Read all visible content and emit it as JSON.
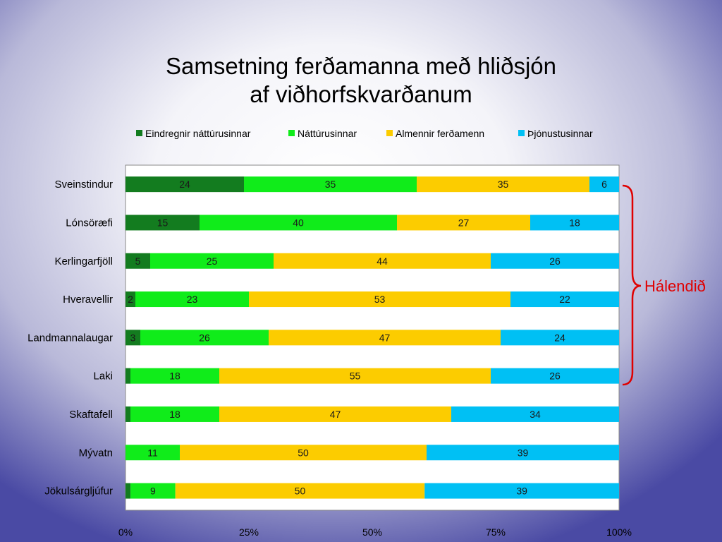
{
  "title_line1": "Samsetning ferðamanna með hliðsjón",
  "title_line2": "af  viðhorfskvarðanum",
  "bracket_label": "Hálendið",
  "bracket_color": "#e00000",
  "chart_data": {
    "type": "bar",
    "orientation": "horizontal",
    "stacked": "percent",
    "title": "Samsetning ferðamanna með hliðsjón af viðhorfskvarðanum",
    "categories": [
      "Sveinstindur",
      "Lónsöræfi",
      "Kerlingarfjöll",
      "Hveravellir",
      "Landmannalaugar",
      "Laki",
      "Skaftafell",
      "Mývatn",
      "Jökulsárgljúfur"
    ],
    "series": [
      {
        "name": "Eindregnir náttúrusinnar",
        "color": "#137c1f",
        "values": [
          24,
          15,
          5,
          2,
          3,
          1,
          1,
          0,
          1
        ],
        "labels": [
          "24",
          "15",
          "5",
          "2",
          "3",
          "",
          "",
          "",
          ""
        ]
      },
      {
        "name": "Náttúrusinnar",
        "color": "#10ec1a",
        "values": [
          35,
          40,
          25,
          23,
          26,
          18,
          18,
          11,
          9
        ],
        "labels": [
          "35",
          "40",
          "25",
          "23",
          "26",
          "18",
          "18",
          "11",
          "9"
        ]
      },
      {
        "name": "Almennir ferðamenn",
        "color": "#fccc00",
        "values": [
          35,
          27,
          44,
          53,
          47,
          55,
          47,
          50,
          50
        ],
        "labels": [
          "35",
          "27",
          "44",
          "53",
          "47",
          "55",
          "47",
          "50",
          "50"
        ]
      },
      {
        "name": "Þjónustusinnar",
        "color": "#00c0f4",
        "values": [
          6,
          18,
          26,
          22,
          24,
          26,
          34,
          39,
          39
        ],
        "labels": [
          "6",
          "18",
          "26",
          "22",
          "24",
          "26",
          "34",
          "39",
          "39"
        ]
      }
    ],
    "x_ticks": [
      "0%",
      "25%",
      "50%",
      "75%",
      "100%"
    ],
    "xlim": [
      0,
      100
    ],
    "legend": "top"
  }
}
